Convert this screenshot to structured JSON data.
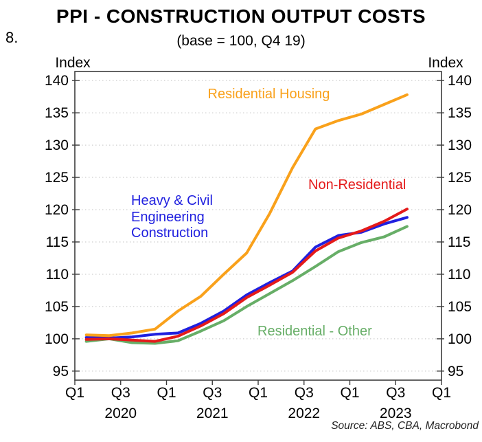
{
  "page": {
    "figure_number": "8.",
    "title": "PPI - CONSTRUCTION OUTPUT COSTS",
    "subtitle": "(base = 100, Q4 19)",
    "y_axis_label_left": "Index",
    "y_axis_label_right": "Index",
    "source": "Source: ABS, CBA, Macrobond"
  },
  "chart_data": {
    "type": "line",
    "title": "PPI - CONSTRUCTION OUTPUT COSTS",
    "subtitle": "(base = 100, Q4 19)",
    "ylabel": "Index",
    "ylim": [
      93.6,
      141.4
    ],
    "y_ticks": [
      95,
      100,
      105,
      110,
      115,
      120,
      125,
      130,
      135,
      140
    ],
    "grid": "horizontal-dotted",
    "legend_position": "inline-labels",
    "x": [
      "2020 Q1",
      "2020 Q2",
      "2020 Q3",
      "2020 Q4",
      "2021 Q1",
      "2021 Q2",
      "2021 Q3",
      "2021 Q4",
      "2022 Q1",
      "2022 Q2",
      "2022 Q3",
      "2022 Q4",
      "2023 Q1",
      "2023 Q2",
      "2023 Q3"
    ],
    "x_axis": {
      "total_quarters": 16,
      "tick_every_quarters": 2,
      "tick_labels": [
        "Q1",
        "Q3",
        "Q1",
        "Q3",
        "Q1",
        "Q3",
        "Q1",
        "Q3",
        "Q1"
      ],
      "years": [
        {
          "label": "2020",
          "center_quarter": 2
        },
        {
          "label": "2021",
          "center_quarter": 6
        },
        {
          "label": "2022",
          "center_quarter": 10
        },
        {
          "label": "2023",
          "center_quarter": 14
        }
      ]
    },
    "series": [
      {
        "name": "Residential Housing",
        "label": "Residential Housing",
        "color": "#F9A11B",
        "values": [
          100.6,
          100.5,
          100.9,
          101.5,
          104.3,
          106.6,
          110.0,
          113.3,
          119.4,
          126.5,
          132.5,
          133.8,
          134.8,
          136.3,
          137.8
        ]
      },
      {
        "name": "Heavy & Civil Engineering Construction",
        "label": "Heavy & Civil\nEngineering\nConstruction",
        "color": "#2020DF",
        "values": [
          100.2,
          100.1,
          100.3,
          100.7,
          100.9,
          102.4,
          104.3,
          106.8,
          108.7,
          110.5,
          114.2,
          116.0,
          116.5,
          117.8,
          118.8
        ]
      },
      {
        "name": "Non-Residential",
        "label": "Non-Residential",
        "color": "#E41A1A",
        "values": [
          99.9,
          100.0,
          99.8,
          99.6,
          100.4,
          102.0,
          103.9,
          106.4,
          108.3,
          110.3,
          113.6,
          115.6,
          116.7,
          118.2,
          120.1
        ]
      },
      {
        "name": "Residential - Other",
        "label": "Residential - Other",
        "color": "#67AE67",
        "values": [
          99.6,
          100.0,
          99.4,
          99.3,
          99.7,
          101.2,
          102.8,
          105.0,
          107.0,
          109.0,
          111.2,
          113.5,
          114.9,
          115.8,
          117.4
        ]
      }
    ]
  }
}
